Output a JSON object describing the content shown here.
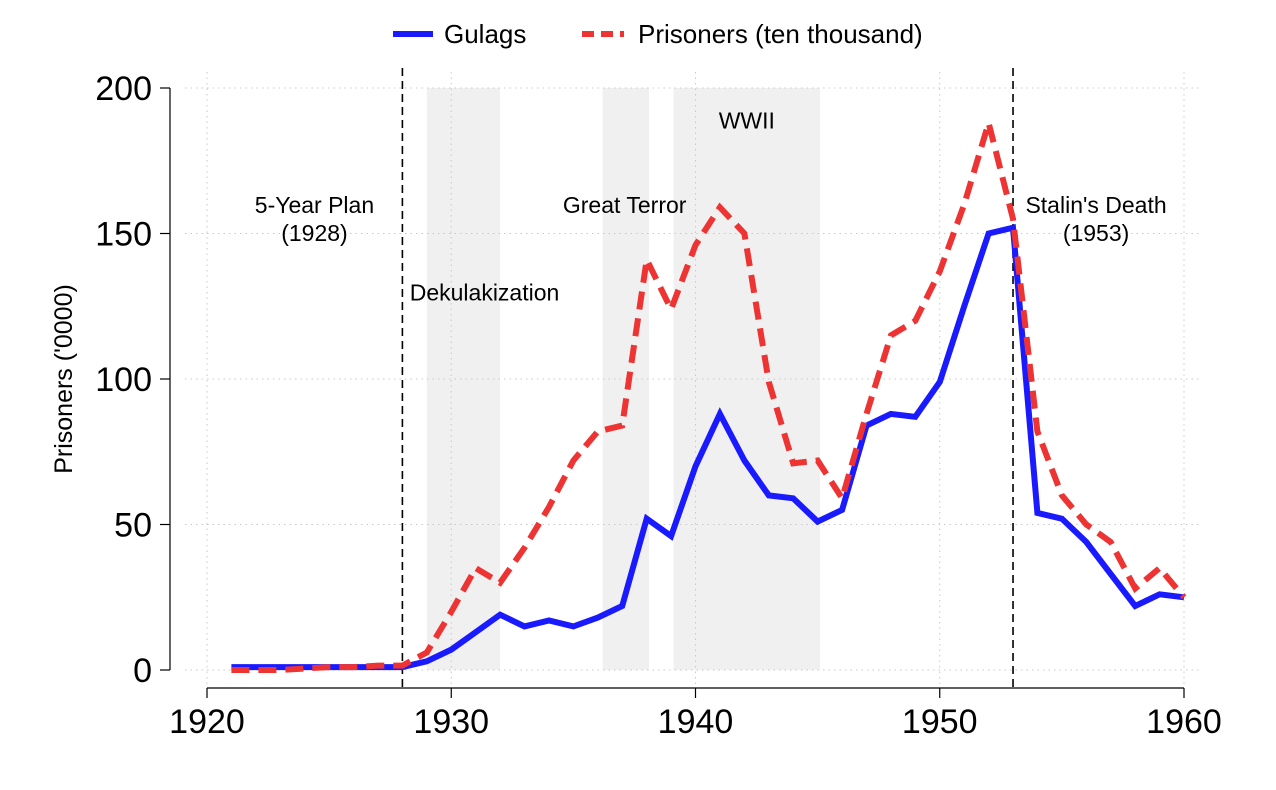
{
  "chart_data": {
    "type": "line",
    "title": "",
    "xlabel": "",
    "ylabel": "Prisoners ('0000)",
    "xlim": [
      1920,
      1960
    ],
    "ylim": [
      0,
      200
    ],
    "xticks": [
      1920,
      1930,
      1940,
      1950,
      1960
    ],
    "yticks": [
      0,
      50,
      100,
      150,
      200
    ],
    "grid": "dotted",
    "legend_position": "top",
    "series": [
      {
        "name": "Gulags",
        "color": "#1a1aff",
        "style": "solid",
        "points": [
          [
            1921,
            1
          ],
          [
            1922,
            1
          ],
          [
            1923,
            1
          ],
          [
            1924,
            1
          ],
          [
            1925,
            1
          ],
          [
            1926,
            1
          ],
          [
            1927,
            1
          ],
          [
            1928,
            1
          ],
          [
            1929,
            3
          ],
          [
            1930,
            7
          ],
          [
            1931,
            13
          ],
          [
            1932,
            19
          ],
          [
            1933,
            15
          ],
          [
            1934,
            17
          ],
          [
            1935,
            15
          ],
          [
            1936,
            18
          ],
          [
            1937,
            22
          ],
          [
            1938,
            52
          ],
          [
            1939,
            46
          ],
          [
            1940,
            70
          ],
          [
            1941,
            88
          ],
          [
            1942,
            72
          ],
          [
            1943,
            60
          ],
          [
            1944,
            59
          ],
          [
            1945,
            51
          ],
          [
            1946,
            55
          ],
          [
            1947,
            84
          ],
          [
            1948,
            88
          ],
          [
            1949,
            87
          ],
          [
            1950,
            99
          ],
          [
            1951,
            125
          ],
          [
            1952,
            150
          ],
          [
            1953,
            152
          ],
          [
            1954,
            54
          ],
          [
            1955,
            52
          ],
          [
            1956,
            44
          ],
          [
            1957,
            33
          ],
          [
            1958,
            22
          ],
          [
            1959,
            26
          ],
          [
            1960,
            25
          ]
        ]
      },
      {
        "name": "Prisoners (ten thousand)",
        "color": "#ee3333",
        "style": "dashed",
        "points": [
          [
            1921,
            0
          ],
          [
            1922,
            0
          ],
          [
            1923,
            0
          ],
          [
            1924,
            0.5
          ],
          [
            1925,
            1
          ],
          [
            1926,
            1
          ],
          [
            1927,
            1.5
          ],
          [
            1928,
            1.5
          ],
          [
            1929,
            6
          ],
          [
            1930,
            20
          ],
          [
            1931,
            35
          ],
          [
            1932,
            30
          ],
          [
            1933,
            42
          ],
          [
            1934,
            56
          ],
          [
            1935,
            72
          ],
          [
            1936,
            82
          ],
          [
            1937,
            84
          ],
          [
            1938,
            141
          ],
          [
            1939,
            124
          ],
          [
            1940,
            146
          ],
          [
            1941,
            159
          ],
          [
            1942,
            150
          ],
          [
            1943,
            99
          ],
          [
            1944,
            71
          ],
          [
            1945,
            72
          ],
          [
            1946,
            59
          ],
          [
            1947,
            88
          ],
          [
            1948,
            115
          ],
          [
            1949,
            120
          ],
          [
            1950,
            137
          ],
          [
            1951,
            160
          ],
          [
            1952,
            188
          ],
          [
            1953,
            155
          ],
          [
            1954,
            82
          ],
          [
            1955,
            60
          ],
          [
            1956,
            50
          ],
          [
            1957,
            44
          ],
          [
            1958,
            28
          ],
          [
            1959,
            35
          ],
          [
            1960,
            25
          ]
        ]
      }
    ],
    "shaded_periods": [
      [
        1929,
        1932
      ],
      [
        1936.2,
        1938.1
      ],
      [
        1939.1,
        1945.1
      ]
    ],
    "vertical_lines": [
      1928,
      1953
    ],
    "annotations": [
      {
        "lines": [
          "5-Year Plan",
          "(1928)"
        ],
        "x": 1924.4,
        "y": 157,
        "anchor": "middle"
      },
      {
        "lines": [
          "Dekulakization"
        ],
        "x": 1928.3,
        "y": 127,
        "anchor": "start"
      },
      {
        "lines": [
          "Great Terror"
        ],
        "x": 1937.1,
        "y": 157,
        "anchor": "middle"
      },
      {
        "lines": [
          "WWII"
        ],
        "x": 1942.1,
        "y": 186,
        "anchor": "middle"
      },
      {
        "lines": [
          "Stalin's Death",
          "(1953)"
        ],
        "x": 1956.4,
        "y": 157,
        "anchor": "middle"
      }
    ]
  }
}
